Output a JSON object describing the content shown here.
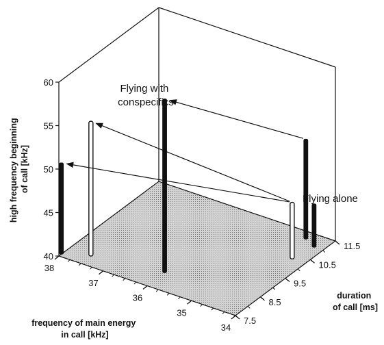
{
  "chart_data": {
    "type": "scatter",
    "projection": "3d-stem",
    "x_axis": {
      "label_lines": [
        "frequency of main energy",
        "in call [kHz]"
      ],
      "ticks": [
        "38",
        "37",
        "36",
        "35",
        "34"
      ]
    },
    "y_axis": {
      "label_lines": [
        "duration",
        "of call [ms]"
      ],
      "ticks": [
        "7.5",
        "8.5",
        "9.5",
        "10.5",
        "11.5"
      ]
    },
    "z_axis": {
      "label_lines": [
        "high frequency beginning",
        "of call [kHz]"
      ],
      "ticks": [
        "40",
        "45",
        "50",
        "55",
        "60"
      ],
      "range": [
        40,
        60
      ]
    },
    "points": [
      {
        "x": 38.0,
        "y": 7.6,
        "z": 50.5,
        "style": "filled"
      },
      {
        "x": 37.5,
        "y": 7.9,
        "z": 55.5,
        "style": "hollow"
      },
      {
        "x": 36.0,
        "y": 8.2,
        "z": 60.0,
        "style": "filled"
      },
      {
        "x": 34.3,
        "y": 10.3,
        "z": 46.5,
        "style": "hollow"
      },
      {
        "x": 34.2,
        "y": 11.0,
        "z": 45.0,
        "style": "filled"
      },
      {
        "x": 34.5,
        "y": 11.2,
        "z": 51.5,
        "style": "filled"
      }
    ],
    "arrows": [
      {
        "from": 3,
        "to": 0
      },
      {
        "from": 3,
        "to": 1
      },
      {
        "from": 5,
        "to": 2
      }
    ],
    "annotations": [
      {
        "lines": [
          "Flying with",
          "conspecifics"
        ]
      },
      {
        "lines": [
          "Flying alone"
        ]
      }
    ]
  }
}
